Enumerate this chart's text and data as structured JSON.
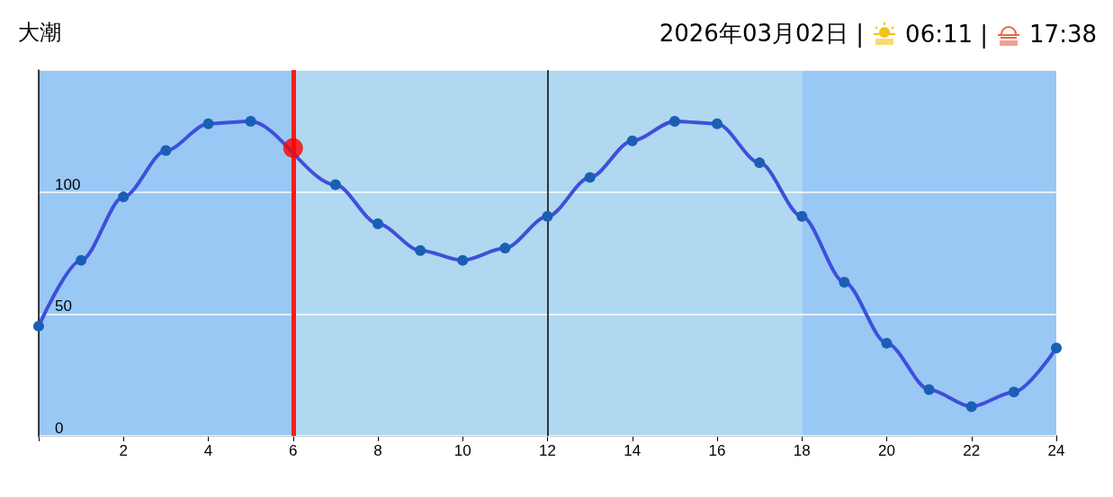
{
  "chart_data": {
    "type": "line",
    "title": "大潮",
    "annotations": [
      "2026年03月02日 |",
      "06:11 |",
      "17:38"
    ],
    "x": [
      0,
      1,
      2,
      3,
      4,
      5,
      6,
      7,
      8,
      9,
      10,
      11,
      12,
      13,
      14,
      15,
      16,
      17,
      18,
      19,
      20,
      21,
      22,
      23,
      24
    ],
    "series": [
      {
        "color": "#3f4fd9",
        "values": [
          45,
          72,
          98,
          117,
          128,
          129,
          null,
          103,
          87,
          76,
          72,
          77,
          90,
          106,
          121,
          129,
          128,
          112,
          90,
          63,
          38,
          19,
          12,
          18,
          36
        ]
      },
      {
        "type": "scatter",
        "color": "#ff0000",
        "x": [
          6
        ],
        "values": [
          118
        ]
      }
    ],
    "xlim": [
      0,
      24
    ],
    "xticks": [
      2,
      4,
      6,
      8,
      10,
      12,
      14,
      16,
      18,
      20,
      22,
      24
    ],
    "ylim": [
      0,
      150
    ],
    "yticks": [
      0,
      50,
      100
    ],
    "grid": "y",
    "marker": "circle",
    "line_style": "solid",
    "bands": [
      {
        "axis": "x",
        "from": 0,
        "to": 6,
        "color": "#99c8f5"
      },
      {
        "axis": "x",
        "from": 6,
        "to": 18,
        "color": "#b0d8f0"
      },
      {
        "axis": "x",
        "from": 18,
        "to": 24,
        "color": "#99c8f5"
      }
    ],
    "ref_lines": [
      {
        "axis": "x",
        "value": 6,
        "color": "#ff1a1a"
      },
      {
        "axis": "x",
        "value": 12,
        "color": "#000000"
      }
    ]
  }
}
